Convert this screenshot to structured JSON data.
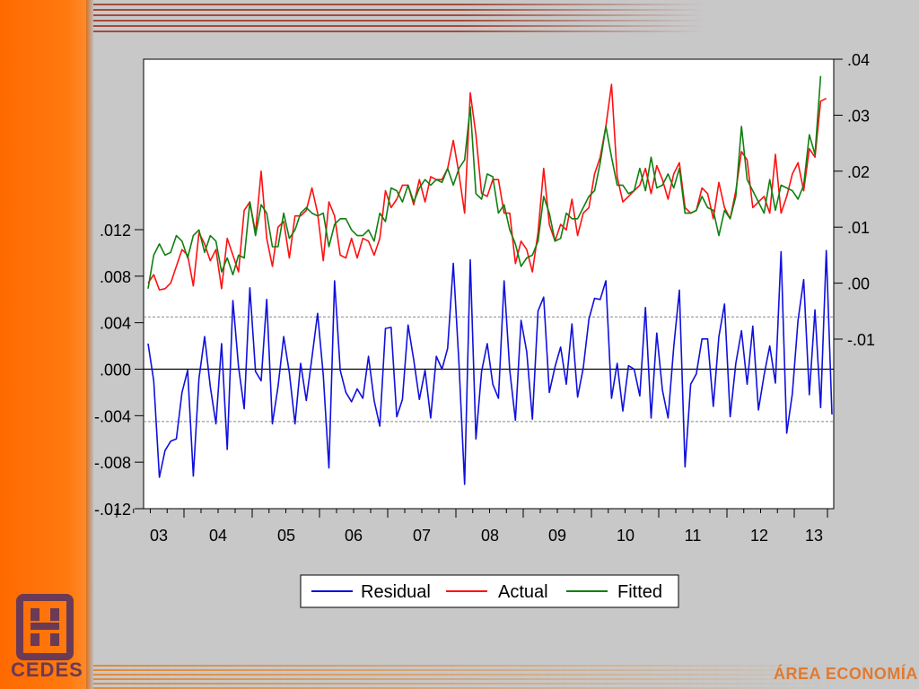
{
  "branding": {
    "logo_text": "CEDES",
    "area_text": "ÁREA ECONOMÍA",
    "accent_color": "#ff6a00",
    "logo_color": "#6b3a55"
  },
  "chart_data": {
    "type": "line",
    "title": "",
    "xlabel": "",
    "x_ticks": [
      "03",
      "04",
      "05",
      "06",
      "07",
      "08",
      "09",
      "10",
      "11",
      "12",
      "13"
    ],
    "left_axis": {
      "range": [
        -0.012,
        0.012
      ],
      "ticks": [
        ".012",
        ".008",
        ".004",
        ".000",
        "-.004",
        "-.008",
        "-.012"
      ],
      "tick_values": [
        0.012,
        0.008,
        0.004,
        0.0,
        -0.004,
        -0.008,
        -0.012
      ],
      "reference_lines": [
        0.0
      ],
      "dashed_lines": [
        0.0045,
        -0.0045
      ]
    },
    "right_axis": {
      "range": [
        -0.01,
        0.04
      ],
      "ticks": [
        ".04",
        ".03",
        ".02",
        ".01",
        ".00",
        "-.01"
      ],
      "tick_values": [
        0.04,
        0.03,
        0.02,
        0.01,
        0.0,
        -0.01
      ]
    },
    "legend": {
      "position": "bottom"
    },
    "series": [
      {
        "name": "Residual",
        "axis": "left",
        "color": "#1010dd",
        "values": [
          0.0022,
          -0.001,
          -0.0093,
          -0.007,
          -0.0062,
          -0.006,
          -0.002,
          -0.0001,
          -0.0092,
          -0.0008,
          0.0028,
          -0.0015,
          -0.0047,
          0.0022,
          -0.0069,
          0.0059,
          0.0002,
          -0.0034,
          0.007,
          -0.0002,
          -0.001,
          0.006,
          -0.0047,
          -0.0015,
          0.0028,
          -0.0003,
          -0.0047,
          0.0005,
          -0.0027,
          0.001,
          0.0048,
          -0.0005,
          -0.0085,
          0.0076,
          -0.0001,
          -0.002,
          -0.0028,
          -0.0017,
          -0.0025,
          0.0011,
          -0.0027,
          -0.0049,
          0.0035,
          0.0036,
          -0.0041,
          -0.0026,
          0.0038,
          0.0008,
          -0.0026,
          -0.0001,
          -0.0042,
          0.0011,
          0.0,
          0.0018,
          0.0091,
          0.0005,
          -0.0099,
          0.0094,
          -0.006,
          -0.0002,
          0.0022,
          -0.0013,
          -0.0025,
          0.0076,
          -0.0001,
          -0.0044,
          0.0042,
          0.0015,
          -0.0043,
          0.005,
          0.0062,
          -0.002,
          0.0002,
          0.0019,
          -0.0013,
          0.0039,
          -0.0024,
          0.0001,
          0.0043,
          0.0061,
          0.006,
          0.0076,
          -0.0025,
          0.0005,
          -0.0036,
          0.0003,
          0.0,
          -0.0023,
          0.0053,
          -0.0042,
          0.0031,
          -0.0018,
          -0.0042,
          0.0019,
          0.0068,
          -0.0084,
          -0.0013,
          -0.0004,
          0.0026,
          0.0026,
          -0.0032,
          0.0028,
          0.0056,
          -0.0041,
          0.0005,
          0.0033,
          -0.0013,
          0.0037,
          -0.0035,
          -0.0005,
          0.002,
          -0.0012,
          0.0101,
          -0.0055,
          -0.0021,
          0.0042,
          0.0077,
          -0.0022,
          0.0051,
          -0.0033,
          0.0102,
          -0.0039
        ]
      },
      {
        "name": "Actual",
        "axis": "right",
        "color": "#ff1010",
        "values": [
          0.0,
          0.0015,
          -0.0012,
          -0.001,
          0.0,
          0.003,
          0.006,
          0.005,
          -0.0005,
          0.009,
          0.007,
          0.004,
          0.006,
          -0.001,
          0.008,
          0.005,
          0.002,
          0.013,
          0.0145,
          0.009,
          0.02,
          0.008,
          0.003,
          0.01,
          0.011,
          0.0045,
          0.012,
          0.012,
          0.013,
          0.017,
          0.0125,
          0.004,
          0.0145,
          0.012,
          0.005,
          0.0045,
          0.008,
          0.0045,
          0.008,
          0.0075,
          0.005,
          0.008,
          0.0165,
          0.0135,
          0.015,
          0.0175,
          0.0175,
          0.014,
          0.0185,
          0.0145,
          0.019,
          0.0185,
          0.0185,
          0.0205,
          0.0255,
          0.0195,
          0.0125,
          0.034,
          0.0265,
          0.016,
          0.0155,
          0.0185,
          0.0185,
          0.0125,
          0.0125,
          0.0035,
          0.0075,
          0.006,
          0.002,
          0.009,
          0.0205,
          0.0105,
          0.0075,
          0.0105,
          0.0095,
          0.015,
          0.0085,
          0.0125,
          0.0135,
          0.0195,
          0.0225,
          0.028,
          0.0355,
          0.019,
          0.0145,
          0.0155,
          0.0165,
          0.0175,
          0.0205,
          0.016,
          0.021,
          0.0185,
          0.015,
          0.0195,
          0.0215,
          0.0135,
          0.0125,
          0.013,
          0.017,
          0.016,
          0.0115,
          0.018,
          0.0135,
          0.0115,
          0.0165,
          0.0235,
          0.022,
          0.0135,
          0.0145,
          0.0155,
          0.0125,
          0.023,
          0.0125,
          0.0155,
          0.0195,
          0.0215,
          0.0165,
          0.024,
          0.0225,
          0.0325,
          0.033
        ]
      },
      {
        "name": "Fitted",
        "axis": "right",
        "color": "#108010",
        "values": [
          -0.001,
          0.005,
          0.007,
          0.005,
          0.0055,
          0.0085,
          0.0075,
          0.0045,
          0.0085,
          0.0095,
          0.0055,
          0.0085,
          0.0075,
          0.002,
          0.0045,
          0.0015,
          0.005,
          0.0045,
          0.0145,
          0.0085,
          0.014,
          0.0125,
          0.0065,
          0.0065,
          0.0125,
          0.008,
          0.0095,
          0.0125,
          0.0135,
          0.0125,
          0.012,
          0.0125,
          0.0065,
          0.0105,
          0.0115,
          0.0115,
          0.0095,
          0.0085,
          0.0085,
          0.0095,
          0.0075,
          0.0125,
          0.011,
          0.017,
          0.0165,
          0.0145,
          0.0175,
          0.0145,
          0.017,
          0.0185,
          0.0175,
          0.0185,
          0.018,
          0.0205,
          0.0175,
          0.0205,
          0.022,
          0.0315,
          0.016,
          0.015,
          0.0195,
          0.019,
          0.0125,
          0.014,
          0.0095,
          0.007,
          0.003,
          0.0045,
          0.005,
          0.0075,
          0.0155,
          0.0125,
          0.0075,
          0.008,
          0.0125,
          0.0115,
          0.0115,
          0.0135,
          0.0155,
          0.0165,
          0.0215,
          0.028,
          0.0225,
          0.0175,
          0.0175,
          0.016,
          0.0165,
          0.0205,
          0.0165,
          0.0225,
          0.017,
          0.0175,
          0.0195,
          0.017,
          0.0205,
          0.0125,
          0.0125,
          0.013,
          0.0155,
          0.0135,
          0.013,
          0.0085,
          0.013,
          0.0115,
          0.0155,
          0.028,
          0.0185,
          0.0165,
          0.0145,
          0.0125,
          0.0185,
          0.013,
          0.0175,
          0.017,
          0.0165,
          0.015,
          0.0175,
          0.0265,
          0.023,
          0.037
        ]
      }
    ]
  }
}
